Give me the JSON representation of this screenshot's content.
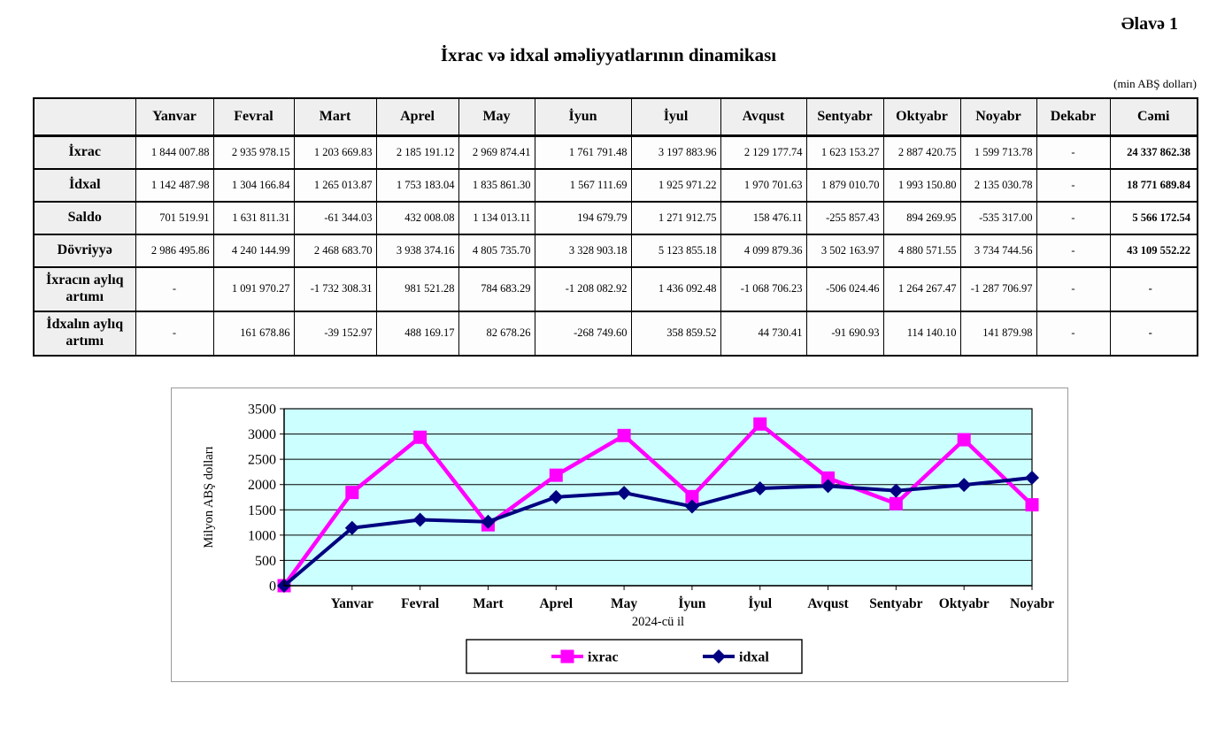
{
  "document": {
    "appendix": "Əlavə 1",
    "title": "İxrac və idxal əməliyyatlarının dinamikası",
    "unit_note": "(min ABŞ dolları)"
  },
  "table": {
    "columns": [
      "",
      "Yanvar",
      "Fevral",
      "Mart",
      "Aprel",
      "May",
      "İyun",
      "İyul",
      "Avqust",
      "Sentyabr",
      "Oktyabr",
      "Noyabr",
      "Dekabr",
      "Cəmi"
    ],
    "rows": [
      {
        "label": "İxrac",
        "values": [
          "1 844 007.88",
          "2 935 978.15",
          "1 203 669.83",
          "2 185 191.12",
          "2 969 874.41",
          "1 761 791.48",
          "3 197 883.96",
          "2 129 177.74",
          "1 623 153.27",
          "2 887 420.75",
          "1 599 713.78",
          "-",
          "24 337 862.38"
        ]
      },
      {
        "label": "İdxal",
        "values": [
          "1 142 487.98",
          "1 304 166.84",
          "1 265 013.87",
          "1 753 183.04",
          "1 835 861.30",
          "1 567 111.69",
          "1 925 971.22",
          "1 970 701.63",
          "1 879 010.70",
          "1 993 150.80",
          "2 135 030.78",
          "-",
          "18 771 689.84"
        ]
      },
      {
        "label": "Saldo",
        "values": [
          "701 519.91",
          "1 631 811.31",
          "-61 344.03",
          "432 008.08",
          "1 134 013.11",
          "194 679.79",
          "1 271 912.75",
          "158 476.11",
          "-255 857.43",
          "894 269.95",
          "-535 317.00",
          "-",
          "5 566 172.54"
        ]
      },
      {
        "label": "Dövriyyə",
        "values": [
          "2 986 495.86",
          "4 240 144.99",
          "2 468 683.70",
          "3 938 374.16",
          "4 805 735.70",
          "3 328 903.18",
          "5 123 855.18",
          "4 099 879.36",
          "3 502 163.97",
          "4 880 571.55",
          "3 734 744.56",
          "-",
          "43 109 552.22"
        ]
      },
      {
        "label": "İxracın aylıq artımı",
        "values": [
          "-",
          "1 091 970.27",
          "-1 732 308.31",
          "981 521.28",
          "784 683.29",
          "-1 208 082.92",
          "1 436 092.48",
          "-1 068 706.23",
          "-506 024.46",
          "1 264 267.47",
          "-1 287 706.97",
          "-",
          "-"
        ]
      },
      {
        "label": "İdxalın aylıq artımı",
        "values": [
          "-",
          "161 678.86",
          "-39 152.97",
          "488 169.17",
          "82 678.26",
          "-268 749.60",
          "358 859.52",
          "44 730.41",
          "-91 690.93",
          "114 140.10",
          "141 879.98",
          "-",
          "-"
        ]
      }
    ]
  },
  "chart_data": {
    "type": "line",
    "title": "",
    "xlabel": "2024-cü il",
    "ylabel": "Milyon ABŞ dolları",
    "ylim": [
      0,
      3500
    ],
    "ytick_step": 500,
    "grid": true,
    "plot_bg": "#CCFFFF",
    "legend_position": "bottom",
    "categories": [
      "",
      "Yanvar",
      "Fevral",
      "Mart",
      "Aprel",
      "May",
      "İyun",
      "İyul",
      "Avqust",
      "Sentyabr",
      "Oktyabr",
      "Noyabr"
    ],
    "series": [
      {
        "name": "ixrac",
        "color": "#FF00FF",
        "marker": "square",
        "values": [
          0,
          1844,
          2936,
          1204,
          2185,
          2970,
          1762,
          3198,
          2129,
          1623,
          2887,
          1600
        ]
      },
      {
        "name": "idxal",
        "color": "#000080",
        "marker": "diamond",
        "values": [
          0,
          1142,
          1304,
          1265,
          1753,
          1836,
          1567,
          1926,
          1971,
          1879,
          1993,
          2135
        ]
      }
    ]
  }
}
